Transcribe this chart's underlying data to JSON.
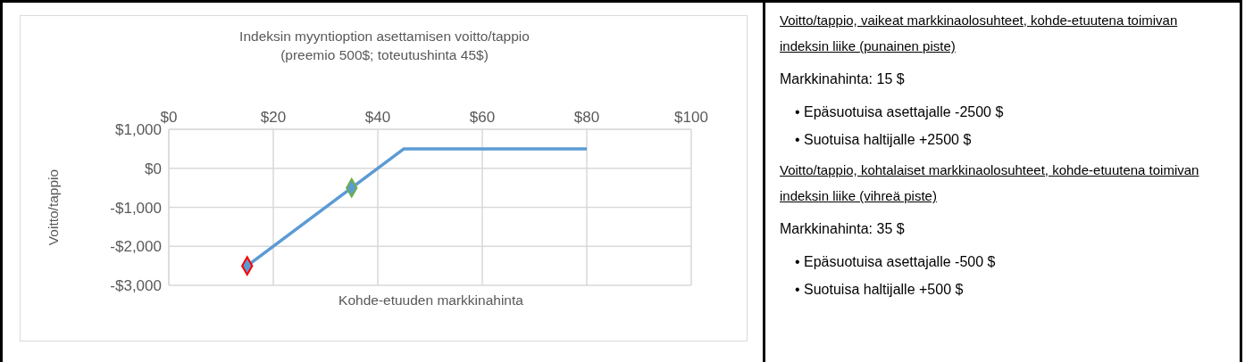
{
  "chart_data": [
    {
      "type": "line",
      "title": "Indeksin myyntioption asettamisen voitto/tappio",
      "subtitle": "(preemio 500$; toteutushinta 45$)",
      "xlabel": "Kohde-etuuden markkinahinta",
      "ylabel": "Voitto/tappio",
      "xlim": [
        0,
        100
      ],
      "xticks": [
        {
          "value": 0,
          "label": "$0"
        },
        {
          "value": 20,
          "label": "$20"
        },
        {
          "value": 40,
          "label": "$40"
        },
        {
          "value": 60,
          "label": "$60"
        },
        {
          "value": 80,
          "label": "$80"
        },
        {
          "value": 100,
          "label": "$100"
        }
      ],
      "ylim": [
        -3000,
        1000
      ],
      "yticks": [
        {
          "value": -3000,
          "label": "-$3,000"
        },
        {
          "value": -2000,
          "label": "-$2,000"
        },
        {
          "value": -1000,
          "label": "-$1,000"
        },
        {
          "value": 0,
          "label": "$0"
        },
        {
          "value": 1000,
          "label": "$1,000"
        }
      ],
      "grid": true,
      "series": [
        {
          "type": "line",
          "color": "#5b9bd5",
          "x": [
            15,
            45,
            80
          ],
          "values": [
            -2500,
            500,
            500
          ],
          "marker": "none",
          "line_style": "solid"
        },
        {
          "type": "scatter",
          "color": "#ff0000",
          "x": [
            15
          ],
          "values": [
            -2500
          ],
          "marker": "diamond"
        },
        {
          "type": "scatter",
          "color": "#70ad47",
          "x": [
            35
          ],
          "values": [
            -500
          ],
          "marker": "diamond"
        }
      ]
    },
    {
      "type": "other",
      "annotations": [
        "Voitto/tappio, vaikeat markkinaolosuhteet, kohde-etuutena toimivan indeksin liike (punainen piste)",
        "Markkinahinta: 15 $",
        "• Epäsuotuisa asettajalle -2500 $",
        "• Suotuisa haltijalle +2500 $",
        "Voitto/tappio, kohtalaiset markkinaolosuhteet, kohde-etuutena toimivan indeksin liike (vihreä piste)",
        "Markkinahinta: 35 $",
        "• Epäsuotuisa asettajalle -500 $",
        "• Suotuisa haltijalle +500 $"
      ]
    }
  ]
}
